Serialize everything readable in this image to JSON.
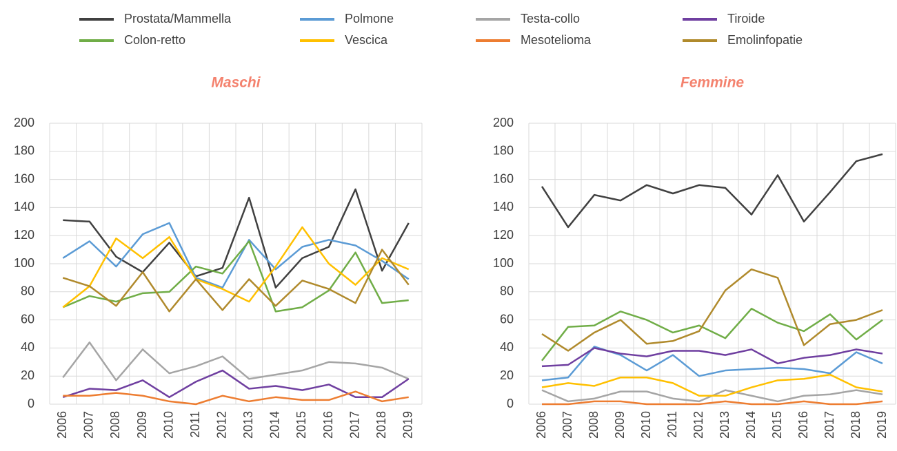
{
  "chart_data": [
    {
      "type": "line",
      "title": "Maschi",
      "categories": [
        "2006",
        "2007",
        "2008",
        "2009",
        "2010",
        "2011",
        "2012",
        "2013",
        "2014",
        "2015",
        "2016",
        "2017",
        "2018",
        "2019"
      ],
      "ylim": [
        0,
        200
      ],
      "yticks": [
        0,
        20,
        40,
        60,
        80,
        100,
        120,
        140,
        160,
        180,
        200
      ],
      "grid": true,
      "series": [
        {
          "name": "Prostata/Mammella",
          "color": "#404040",
          "values": [
            131,
            130,
            105,
            94,
            115,
            91,
            97,
            147,
            83,
            104,
            112,
            153,
            95,
            129
          ]
        },
        {
          "name": "Polmone",
          "color": "#5b9bd5",
          "values": [
            104,
            116,
            98,
            121,
            129,
            90,
            83,
            117,
            96,
            112,
            117,
            113,
            102,
            89
          ]
        },
        {
          "name": "Testa-collo",
          "color": "#a5a5a5",
          "values": [
            19,
            44,
            17,
            39,
            22,
            27,
            34,
            18,
            21,
            24,
            30,
            29,
            26,
            18
          ]
        },
        {
          "name": "Tiroide",
          "color": "#6f3fa0",
          "values": [
            5,
            11,
            10,
            17,
            5,
            16,
            24,
            11,
            13,
            10,
            14,
            5,
            5,
            18
          ]
        },
        {
          "name": "Colon-retto",
          "color": "#70ad47",
          "values": [
            69,
            77,
            73,
            79,
            80,
            98,
            93,
            116,
            66,
            69,
            81,
            108,
            72,
            74
          ]
        },
        {
          "name": "Vescica",
          "color": "#ffc000",
          "values": [
            69,
            84,
            118,
            104,
            119,
            89,
            82,
            73,
            98,
            126,
            100,
            85,
            104,
            96
          ]
        },
        {
          "name": "Mesotelioma",
          "color": "#ed7d31",
          "values": [
            6,
            6,
            8,
            6,
            2,
            0,
            6,
            2,
            5,
            3,
            3,
            9,
            2,
            5
          ]
        },
        {
          "name": "Emolinfopatie",
          "color": "#b08a2c",
          "values": [
            90,
            84,
            70,
            94,
            66,
            89,
            67,
            89,
            70,
            88,
            82,
            72,
            110,
            85
          ]
        }
      ]
    },
    {
      "type": "line",
      "title": "Femmine",
      "categories": [
        "2006",
        "2007",
        "2008",
        "2009",
        "2010",
        "2011",
        "2012",
        "2013",
        "2014",
        "2015",
        "2016",
        "2017",
        "2018",
        "2019"
      ],
      "ylim": [
        0,
        200
      ],
      "yticks": [
        0,
        20,
        40,
        60,
        80,
        100,
        120,
        140,
        160,
        180,
        200
      ],
      "grid": true,
      "series": [
        {
          "values": [
            155,
            126,
            149,
            145,
            156,
            150,
            156,
            154,
            135,
            163,
            130,
            151,
            173,
            178
          ]
        },
        {
          "values": [
            17,
            19,
            41,
            35,
            24,
            35,
            20,
            24,
            25,
            26,
            25,
            22,
            37,
            29
          ]
        },
        {
          "values": [
            10,
            2,
            4,
            9,
            9,
            4,
            2,
            10,
            6,
            2,
            6,
            7,
            10,
            7
          ]
        },
        {
          "values": [
            27,
            28,
            40,
            36,
            34,
            38,
            38,
            35,
            39,
            29,
            33,
            35,
            39,
            36
          ]
        },
        {
          "values": [
            31,
            55,
            56,
            66,
            60,
            51,
            56,
            47,
            68,
            58,
            52,
            64,
            46,
            60
          ]
        },
        {
          "values": [
            12,
            15,
            13,
            19,
            19,
            15,
            6,
            6,
            12,
            17,
            18,
            21,
            12,
            9
          ]
        },
        {
          "values": [
            0,
            0,
            2,
            2,
            0,
            0,
            0,
            2,
            0,
            0,
            2,
            0,
            0,
            2
          ]
        },
        {
          "values": [
            50,
            38,
            51,
            60,
            43,
            45,
            52,
            81,
            96,
            90,
            42,
            57,
            60,
            67
          ]
        }
      ]
    }
  ]
}
